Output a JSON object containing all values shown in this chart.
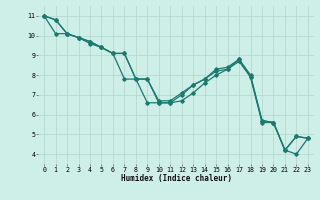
{
  "xlabel": "Humidex (Indice chaleur)",
  "xlim": [
    -0.5,
    23.5
  ],
  "ylim": [
    3.5,
    11.5
  ],
  "xticks": [
    0,
    1,
    2,
    3,
    4,
    5,
    6,
    7,
    8,
    9,
    10,
    11,
    12,
    13,
    14,
    15,
    16,
    17,
    18,
    19,
    20,
    21,
    22,
    23
  ],
  "yticks": [
    4,
    5,
    6,
    7,
    8,
    9,
    10,
    11
  ],
  "background_color": "#ceeee8",
  "grid_color": "#b8d8d2",
  "line_color": "#1a7a6e",
  "lines": [
    [
      11.0,
      10.8,
      10.1,
      9.9,
      9.6,
      9.4,
      9.1,
      9.1,
      7.8,
      6.6,
      6.6,
      6.6,
      7.0,
      7.5,
      7.8,
      8.3,
      8.4,
      8.8,
      8.0,
      5.7,
      5.6,
      4.2,
      4.0,
      4.8
    ],
    [
      11.0,
      10.8,
      10.1,
      9.9,
      9.7,
      9.4,
      9.1,
      7.8,
      7.8,
      7.8,
      6.6,
      6.6,
      6.7,
      7.1,
      7.6,
      8.0,
      8.3,
      8.8,
      7.9,
      5.7,
      5.6,
      4.2,
      4.9,
      4.8
    ],
    [
      11.0,
      10.1,
      10.1,
      9.9,
      9.7,
      9.4,
      9.1,
      9.1,
      7.8,
      7.8,
      6.7,
      6.7,
      7.1,
      7.5,
      7.8,
      8.2,
      8.3,
      8.7,
      7.9,
      5.6,
      5.6,
      4.2,
      4.9,
      4.8
    ]
  ]
}
